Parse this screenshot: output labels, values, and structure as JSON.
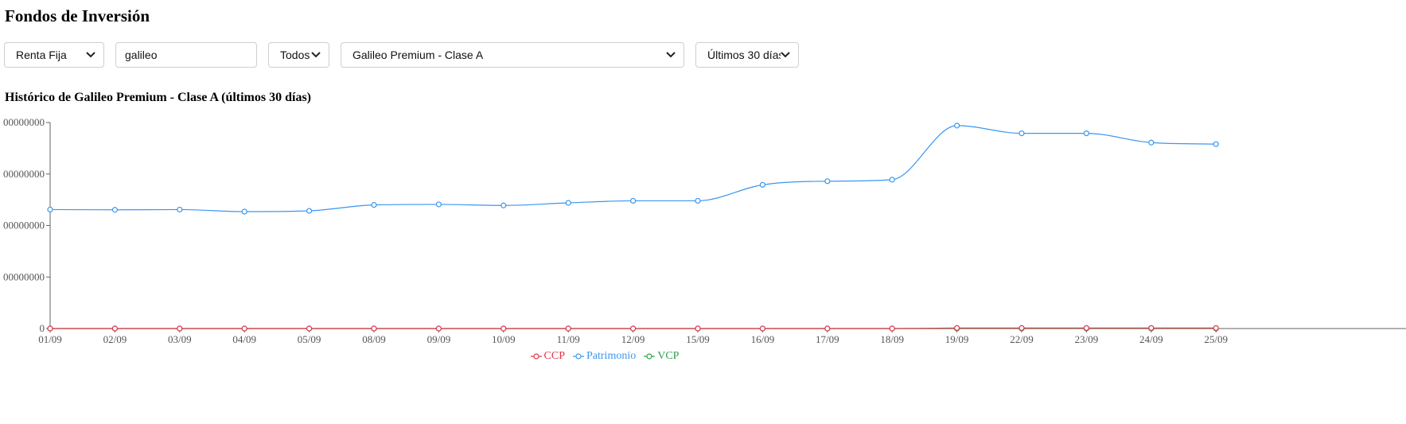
{
  "page": {
    "title": "Fondos de Inversión"
  },
  "filters": {
    "category": {
      "value": "Renta Fija"
    },
    "search": {
      "value": "galileo"
    },
    "scope": {
      "value": "Todos"
    },
    "fund": {
      "value": "Galileo Premium - Clase A"
    },
    "period": {
      "value": "Últimos 30 días"
    }
  },
  "icons": {
    "dropdown": "chevron-down-icon",
    "legend_marker": "circle-marker-icon"
  },
  "chart_data": {
    "type": "line",
    "title": "Histórico de Galileo Premium - Clase A (últimos 30 días)",
    "x": [
      "01/09",
      "02/09",
      "03/09",
      "04/09",
      "05/09",
      "08/09",
      "09/09",
      "10/09",
      "11/09",
      "12/09",
      "15/09",
      "16/09",
      "17/09",
      "18/09",
      "19/09",
      "22/09",
      "23/09",
      "24/09",
      "25/09"
    ],
    "yticks": [
      "0",
      "00000000",
      "00000000",
      "00000000",
      "00000000"
    ],
    "ylim": [
      0,
      4
    ],
    "smooth": true,
    "grid": false,
    "legend_position": "bottom",
    "series": [
      {
        "name": "CCP",
        "color": "#e0334a",
        "values": [
          0.0,
          0.0,
          0.0,
          0.0,
          0.0,
          0.0,
          0.0,
          0.0,
          0.0,
          0.0,
          0.0,
          0.0,
          0.0,
          0.0,
          0.01,
          0.01,
          0.01,
          0.01,
          0.01
        ]
      },
      {
        "name": "Patrimonio",
        "color": "#3a96f0",
        "values": [
          2.31,
          2.305,
          2.31,
          2.27,
          2.285,
          2.4,
          2.41,
          2.39,
          2.44,
          2.48,
          2.48,
          2.79,
          2.86,
          2.89,
          3.94,
          3.79,
          3.79,
          3.61,
          3.58
        ]
      },
      {
        "name": "VCP",
        "color": "#2e9e4a",
        "values": [
          0.0,
          0.0,
          0.0,
          0.0,
          0.0,
          0.0,
          0.0,
          0.0,
          0.0,
          0.0,
          0.0,
          0.0,
          0.0,
          0.0,
          0.0,
          0.0,
          0.0,
          0.0,
          0.0
        ]
      }
    ]
  }
}
